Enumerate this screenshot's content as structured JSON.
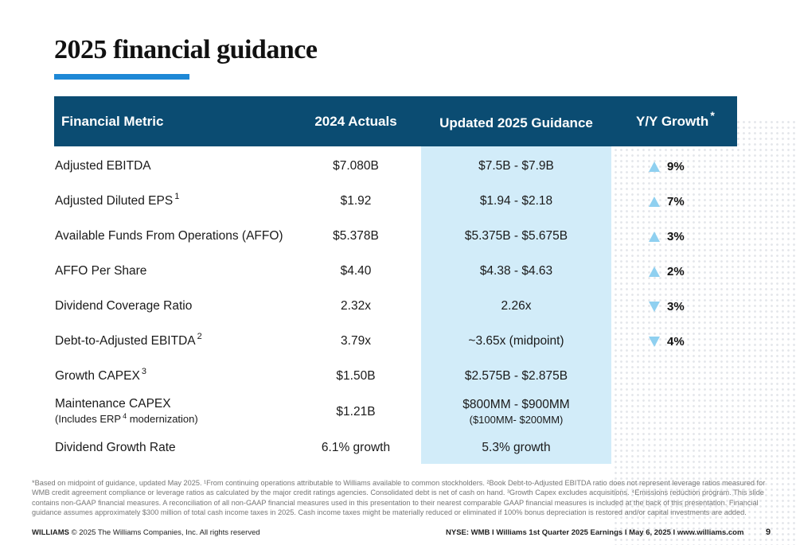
{
  "page": {
    "title": "2025 financial guidance",
    "page_number": "9"
  },
  "colors": {
    "header_bg": "#0b4c72",
    "accent_rule": "#1e88d6",
    "guidance_highlight": "#d2ecf9",
    "arrow": "#8fd0f0"
  },
  "table": {
    "headers": {
      "metric": "Financial Metric",
      "actuals": "2024 Actuals",
      "guidance": "Updated 2025 Guidance",
      "growth": "Y/Y Growth",
      "growth_mark": "*"
    },
    "rows": [
      {
        "metric": "Adjusted EBITDA",
        "metric_sup": "",
        "actual": "$7.080B",
        "guidance": "$7.5B - $7.9B",
        "growth": "9%",
        "direction": "up"
      },
      {
        "metric": "Adjusted Diluted EPS",
        "metric_sup": "1",
        "actual": "$1.92",
        "guidance": "$1.94 - $2.18",
        "growth": "7%",
        "direction": "up"
      },
      {
        "metric": "Available Funds From Operations (AFFO)",
        "metric_sup": "",
        "actual": "$5.378B",
        "guidance": "$5.375B - $5.675B",
        "growth": "3%",
        "direction": "up"
      },
      {
        "metric": "AFFO Per Share",
        "metric_sup": "",
        "actual": "$4.40",
        "guidance": "$4.38 - $4.63",
        "growth": "2%",
        "direction": "up"
      },
      {
        "metric": "Dividend Coverage Ratio",
        "metric_sup": "",
        "actual": "2.32x",
        "guidance": "2.26x",
        "growth": "3%",
        "direction": "down"
      },
      {
        "metric": "Debt-to-Adjusted EBITDA",
        "metric_sup": "2",
        "actual": "3.79x",
        "guidance": "~3.65x (midpoint)",
        "growth": "4%",
        "direction": "down"
      },
      {
        "metric": "Growth CAPEX",
        "metric_sup": "3",
        "actual": "$1.50B",
        "guidance": "$2.575B - $2.875B",
        "growth": "",
        "direction": ""
      },
      {
        "metric": "Maintenance CAPEX",
        "metric_sub_pre": "(Includes ERP",
        "metric_sub_sup": "4",
        "metric_sub_post": " modernization)",
        "actual": "$1.21B",
        "guidance": "$800MM - $900MM",
        "guidance_sub": "($100MM- $200MM)",
        "growth": "",
        "direction": ""
      },
      {
        "metric": "Dividend Growth Rate",
        "metric_sup": "",
        "actual": "6.1% growth",
        "guidance": "5.3% growth",
        "growth": "",
        "direction": ""
      }
    ]
  },
  "footnote": "*Based on midpoint of guidance, updated May 2025. ¹From continuing operations attributable to Williams available to common stockholders. ²Book Debt-to-Adjusted EBITDA ratio does not represent leverage ratios measured for WMB credit agreement compliance or leverage ratios as calculated by the major credit ratings agencies. Consolidated debt is net of cash on hand. ³Growth Capex excludes acquisitions. ⁴Emissions reduction program. This slide contains non-GAAP financial measures. A reconciliation of all non-GAAP financial measures used in this presentation to their nearest comparable GAAP financial measures is included at the back of this presentation. Financial guidance assumes approximately $300 million of total cash income taxes in 2025. Cash income taxes might be materially reduced or eliminated if 100% bonus depreciation is restored and/or capital investments are added.",
  "footer": {
    "brand": "WILLIAMS",
    "copyright": "© 2025 The Williams Companies, Inc. All rights reserved",
    "event": "NYSE: WMB  I  Williams 1st Quarter 2025 Earnings I  May 6, 2025  I  www.williams.com"
  }
}
